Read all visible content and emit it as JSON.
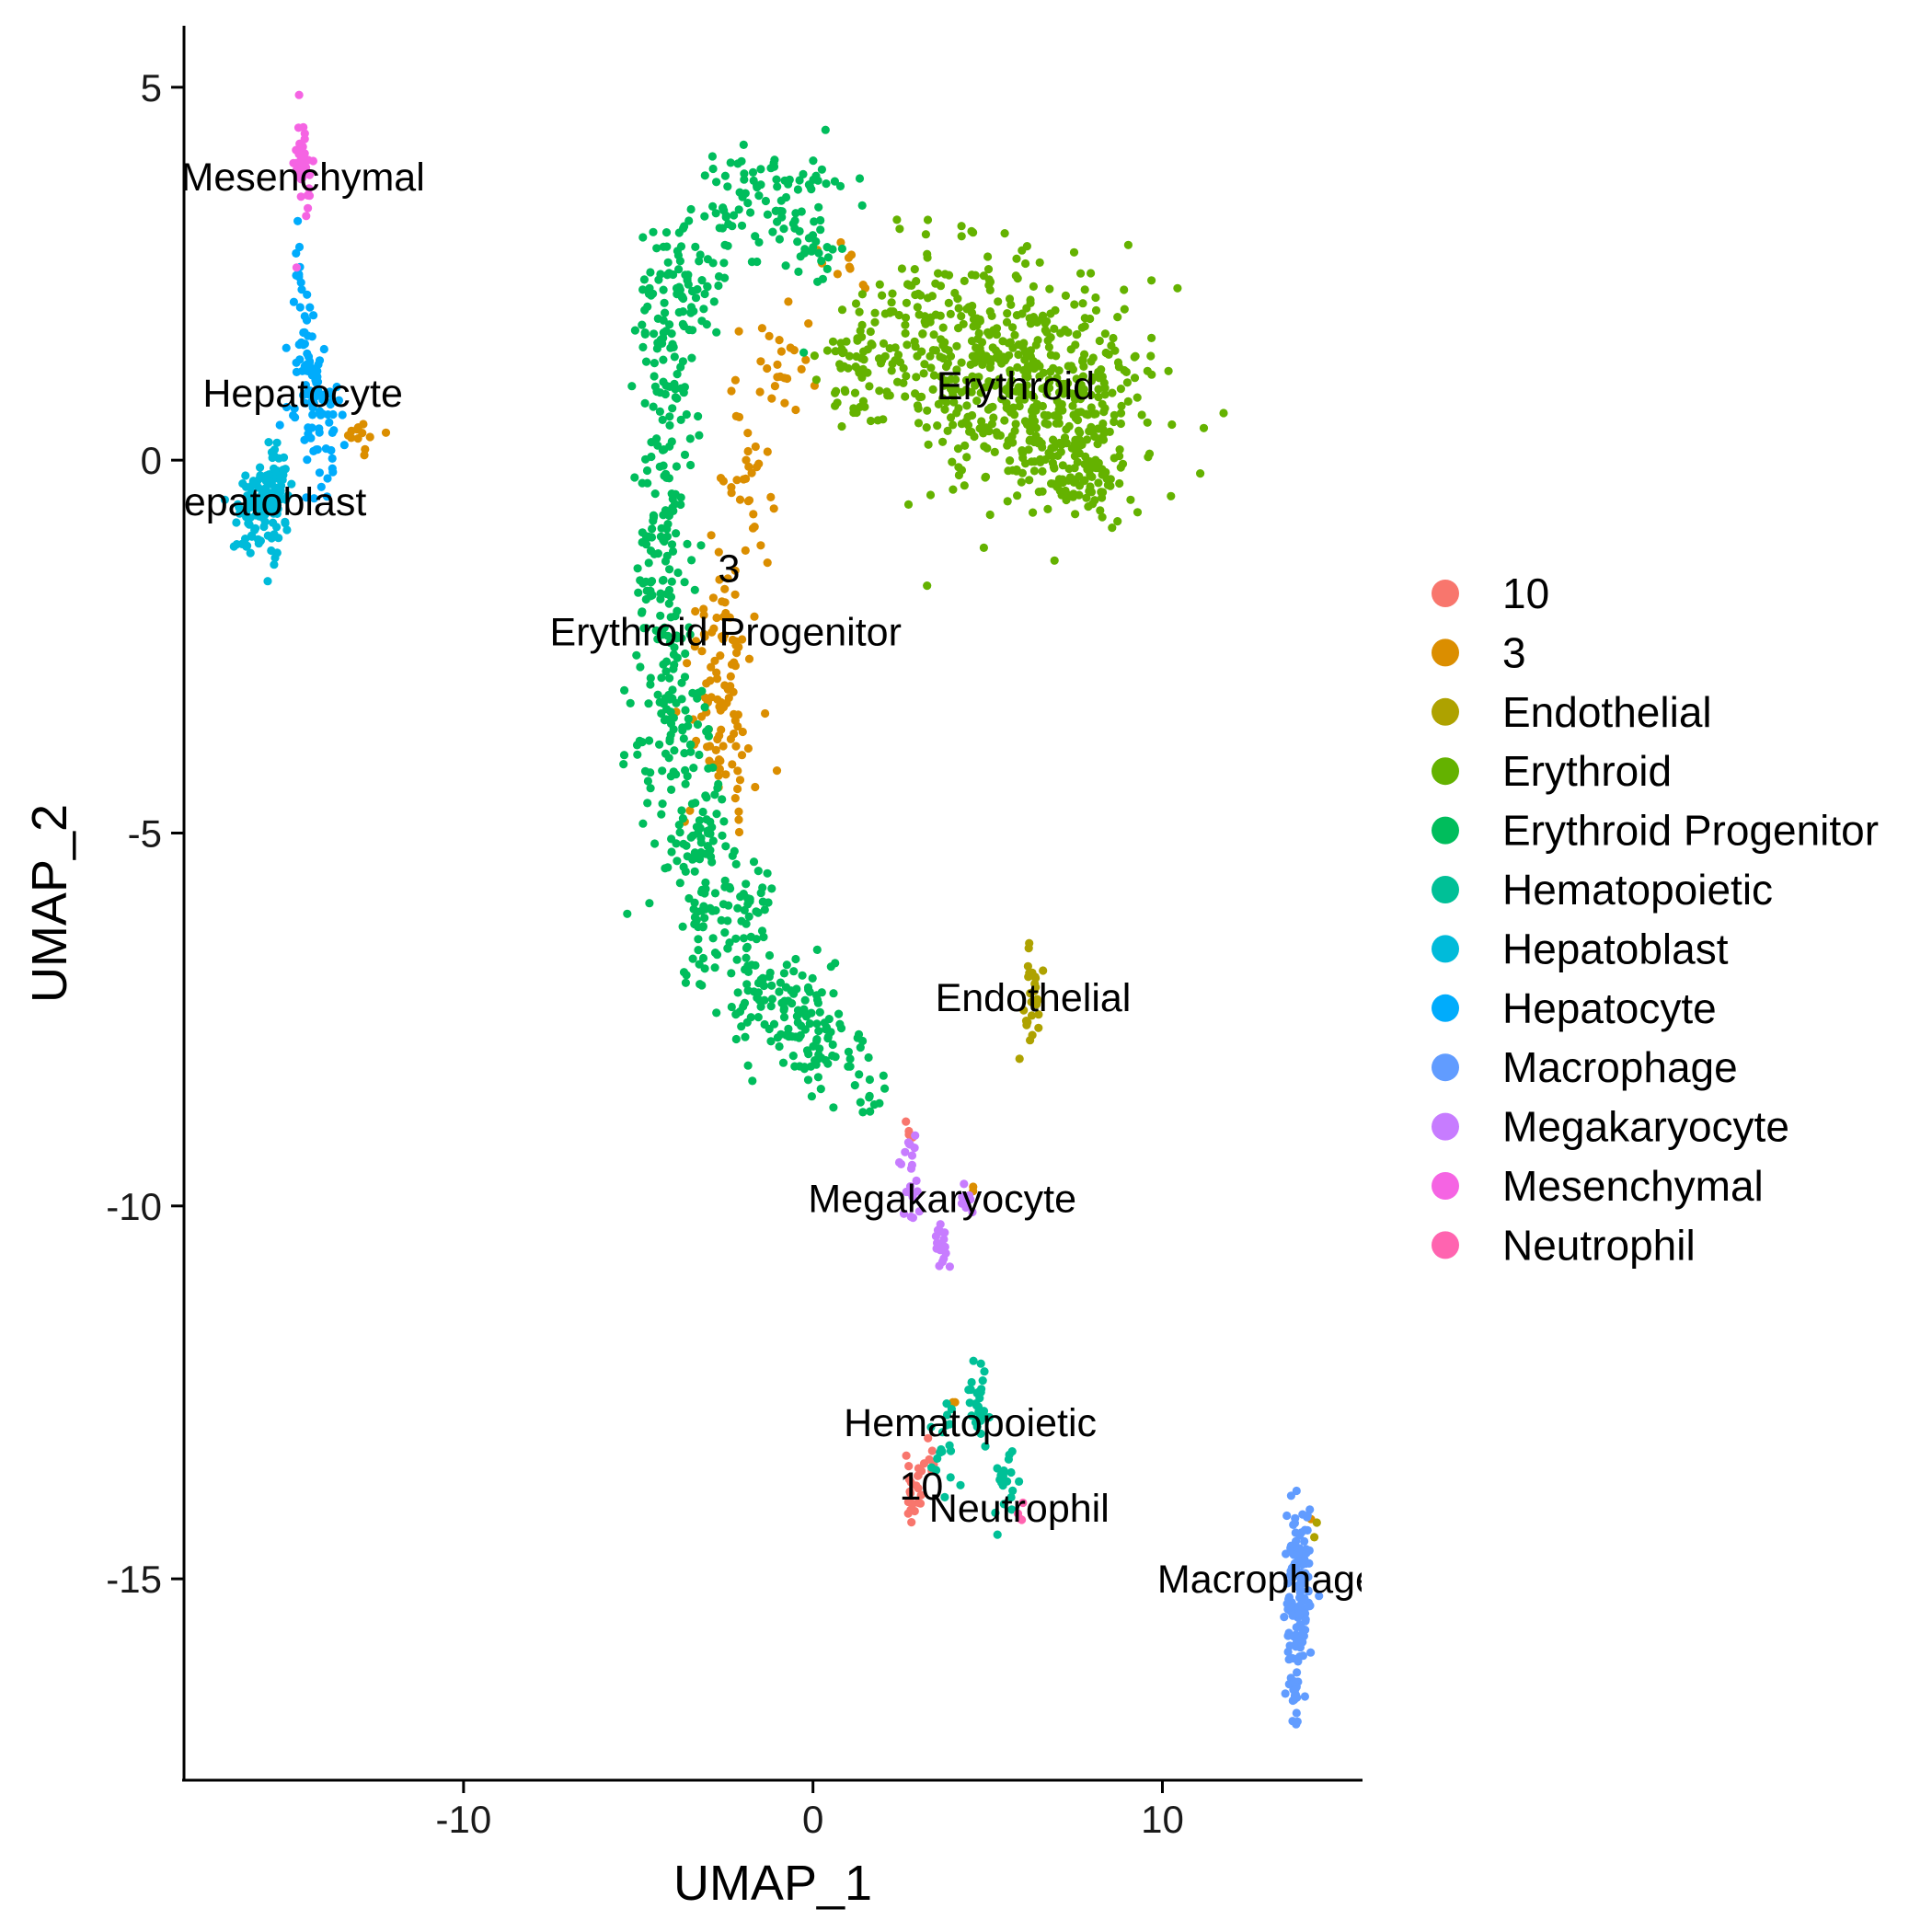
{
  "chart_data": {
    "type": "scatter",
    "title": "",
    "xlabel": "UMAP_1",
    "ylabel": "UMAP_2",
    "xlim": [
      -18.0,
      15.7
    ],
    "ylim": [
      -17.7,
      5.8
    ],
    "x_ticks": [
      -10,
      0,
      10
    ],
    "x_tick_labels": [
      "-10",
      "0",
      "10"
    ],
    "y_ticks": [
      5,
      0,
      -5,
      -10,
      -15
    ],
    "y_tick_labels": [
      "5",
      "0",
      "-5",
      "-10",
      "-15"
    ],
    "grid": false,
    "legend_position": "right",
    "series": [
      {
        "name": "10",
        "color": "#F8766D",
        "clusters": [
          {
            "x": 2.9,
            "y": -13.8,
            "sx": 0.15,
            "sy": 0.2,
            "n": 22,
            "seed": 11
          },
          {
            "x": 3.3,
            "y": -13.4,
            "sx": 0.08,
            "sy": 0.12,
            "n": 6,
            "seed": 12
          },
          {
            "x": 2.7,
            "y": -9.0,
            "sx": 0.06,
            "sy": 0.06,
            "n": 4,
            "seed": 13
          }
        ]
      },
      {
        "name": "3",
        "color": "#DB8E00",
        "clusters": [
          {
            "x": -2.7,
            "y": -2.5,
            "sx": 0.4,
            "sy": 0.8,
            "n": 55,
            "seed": 21
          },
          {
            "x": -2.6,
            "y": -3.6,
            "sx": 0.5,
            "sy": 0.6,
            "n": 55,
            "seed": 22
          },
          {
            "x": -2.0,
            "y": -0.3,
            "sx": 0.4,
            "sy": 0.6,
            "n": 30,
            "seed": 23
          },
          {
            "x": -1.0,
            "y": 1.3,
            "sx": 0.6,
            "sy": 0.4,
            "n": 25,
            "seed": 24
          },
          {
            "x": 0.8,
            "y": 2.6,
            "sx": 0.5,
            "sy": 0.2,
            "n": 10,
            "seed": 25
          },
          {
            "x": -13.0,
            "y": 0.3,
            "sx": 0.35,
            "sy": 0.12,
            "n": 12,
            "seed": 26
          },
          {
            "x": 4.0,
            "y": -12.7,
            "sx": 0.05,
            "sy": 0.05,
            "n": 2,
            "seed": 27
          },
          {
            "x": 4.6,
            "y": -9.8,
            "sx": 0.05,
            "sy": 0.05,
            "n": 2,
            "seed": 28
          },
          {
            "x": 14.2,
            "y": -14.2,
            "sx": 0.05,
            "sy": 0.05,
            "n": 1,
            "seed": 29
          }
        ]
      },
      {
        "name": "Endothelial",
        "color": "#AEA200",
        "clusters": [
          {
            "x": 6.3,
            "y": -7.2,
            "sx": 0.15,
            "sy": 0.35,
            "n": 30,
            "seed": 31
          },
          {
            "x": 14.4,
            "y": -14.3,
            "sx": 0.05,
            "sy": 0.05,
            "n": 2,
            "seed": 32
          }
        ]
      },
      {
        "name": "Erythroid",
        "color": "#64B200",
        "clusters": [
          {
            "x": 6.5,
            "y": 1.0,
            "sx": 1.6,
            "sy": 0.8,
            "n": 420,
            "seed": 41
          },
          {
            "x": 3.6,
            "y": 1.7,
            "sx": 1.3,
            "sy": 0.7,
            "n": 160,
            "seed": 42
          },
          {
            "x": 7.5,
            "y": -0.2,
            "sx": 0.8,
            "sy": 0.4,
            "n": 90,
            "seed": 43
          },
          {
            "x": 1.2,
            "y": 1.3,
            "sx": 0.6,
            "sy": 0.5,
            "n": 55,
            "seed": 44
          }
        ]
      },
      {
        "name": "Erythroid Progenitor",
        "color": "#00BD5C",
        "clusters": [
          {
            "x": -1.5,
            "y": 3.5,
            "sx": 1.0,
            "sy": 0.35,
            "n": 90,
            "seed": 51
          },
          {
            "x": -3.6,
            "y": 2.4,
            "sx": 0.6,
            "sy": 0.4,
            "n": 80,
            "seed": 52
          },
          {
            "x": -4.2,
            "y": 0.8,
            "sx": 0.45,
            "sy": 0.6,
            "n": 70,
            "seed": 53
          },
          {
            "x": -4.4,
            "y": -1.2,
            "sx": 0.45,
            "sy": 0.7,
            "n": 80,
            "seed": 54
          },
          {
            "x": -4.2,
            "y": -3.2,
            "sx": 0.5,
            "sy": 0.7,
            "n": 90,
            "seed": 55
          },
          {
            "x": -3.4,
            "y": -5.0,
            "sx": 0.6,
            "sy": 0.6,
            "n": 80,
            "seed": 56
          },
          {
            "x": -2.5,
            "y": -6.2,
            "sx": 0.7,
            "sy": 0.5,
            "n": 90,
            "seed": 57
          },
          {
            "x": -1.0,
            "y": -7.3,
            "sx": 0.8,
            "sy": 0.35,
            "n": 90,
            "seed": 58
          },
          {
            "x": 0.4,
            "y": -7.9,
            "sx": 0.6,
            "sy": 0.3,
            "n": 55,
            "seed": 59
          },
          {
            "x": 1.6,
            "y": -8.4,
            "sx": 0.3,
            "sy": 0.2,
            "n": 12,
            "seed": 60
          },
          {
            "x": -0.1,
            "y": 2.8,
            "sx": 0.5,
            "sy": 0.4,
            "n": 25,
            "seed": 61
          }
        ]
      },
      {
        "name": "Hematopoietic",
        "color": "#00C097",
        "clusters": [
          {
            "x": 4.7,
            "y": -12.6,
            "sx": 0.15,
            "sy": 0.35,
            "n": 30,
            "seed": 71
          },
          {
            "x": 5.5,
            "y": -13.7,
            "sx": 0.2,
            "sy": 0.35,
            "n": 20,
            "seed": 72
          },
          {
            "x": 3.8,
            "y": -13.3,
            "sx": 0.25,
            "sy": 0.3,
            "n": 18,
            "seed": 73
          }
        ]
      },
      {
        "name": "Hepatoblast",
        "color": "#00BBDA",
        "clusters": [
          {
            "x": -15.8,
            "y": -0.6,
            "sx": 0.35,
            "sy": 0.35,
            "n": 110,
            "seed": 81
          },
          {
            "x": -15.3,
            "y": -0.2,
            "sx": 0.2,
            "sy": 0.2,
            "n": 25,
            "seed": 82
          }
        ]
      },
      {
        "name": "Hepatocyte",
        "color": "#00ACFC",
        "clusters": [
          {
            "x": -14.2,
            "y": 0.6,
            "sx": 0.4,
            "sy": 0.45,
            "n": 65,
            "seed": 91
          },
          {
            "x": -14.5,
            "y": 1.5,
            "sx": 0.2,
            "sy": 0.4,
            "n": 35,
            "seed": 92
          },
          {
            "x": -14.7,
            "y": 2.6,
            "sx": 0.06,
            "sy": 0.4,
            "n": 10,
            "seed": 93
          }
        ]
      },
      {
        "name": "Macrophage",
        "color": "#619CFF",
        "clusters": [
          {
            "x": 13.9,
            "y": -15.2,
            "sx": 0.18,
            "sy": 0.6,
            "n": 140,
            "seed": 101
          },
          {
            "x": 13.8,
            "y": -16.6,
            "sx": 0.06,
            "sy": 0.15,
            "n": 12,
            "seed": 102
          }
        ]
      },
      {
        "name": "Megakaryocyte",
        "color": "#C77CFF",
        "clusters": [
          {
            "x": 2.8,
            "y": -9.4,
            "sx": 0.15,
            "sy": 0.35,
            "n": 22,
            "seed": 111
          },
          {
            "x": 3.7,
            "y": -10.5,
            "sx": 0.12,
            "sy": 0.2,
            "n": 16,
            "seed": 112
          },
          {
            "x": 4.4,
            "y": -9.9,
            "sx": 0.12,
            "sy": 0.18,
            "n": 10,
            "seed": 113
          }
        ]
      },
      {
        "name": "Mesenchymal",
        "color": "#F564E3",
        "clusters": [
          {
            "x": -14.6,
            "y": 4.1,
            "sx": 0.12,
            "sy": 0.4,
            "n": 35,
            "seed": 121
          }
        ]
      },
      {
        "name": "Neutrophil",
        "color": "#FF64B0",
        "clusters": [
          {
            "x": 5.9,
            "y": -14.1,
            "sx": 0.06,
            "sy": 0.06,
            "n": 4,
            "seed": 131
          }
        ]
      }
    ],
    "annotations": [
      {
        "text": "Mesenchymal",
        "x": -14.6,
        "y": 3.8
      },
      {
        "text": "Hepatocyte",
        "x": -14.6,
        "y": 0.9
      },
      {
        "text": "Hepatoblast",
        "x": -15.8,
        "y": -0.55
      },
      {
        "text": "3",
        "x": -2.4,
        "y": -1.45
      },
      {
        "text": "Erythroid Progenitor",
        "x": -2.5,
        "y": -2.3
      },
      {
        "text": "Erythroid",
        "x": 5.8,
        "y": 1.0
      },
      {
        "text": "Endothelial",
        "x": 6.3,
        "y": -7.2
      },
      {
        "text": "Megakaryocyte",
        "x": 3.7,
        "y": -9.9
      },
      {
        "text": "Hematopoietic",
        "x": 4.5,
        "y": -12.9
      },
      {
        "text": "10",
        "x": 3.1,
        "y": -13.75
      },
      {
        "text": "Neutrophil",
        "x": 5.9,
        "y": -14.05
      },
      {
        "text": "Macrophage",
        "x": 13.0,
        "y": -15.0
      }
    ]
  }
}
